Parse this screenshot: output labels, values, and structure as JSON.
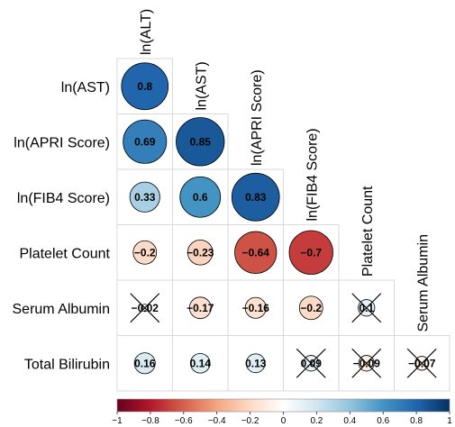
{
  "chart_data": {
    "type": "heatmap",
    "style": "correlation-circle-lower-triangle",
    "column_labels": [
      "ln(ALT)",
      "ln(AST)",
      "ln(APRI Score)",
      "ln(FIB4 Score)",
      "Platelet Count",
      "Serum Albumin"
    ],
    "row_labels": [
      "ln(AST)",
      "ln(APRI Score)",
      "ln(FIB4 Score)",
      "Platelet Count",
      "Serum Albumin",
      "Total Bilirubin"
    ],
    "cells": [
      {
        "row": 0,
        "col": 0,
        "value": 0.8,
        "label": "0.8",
        "crossed": false
      },
      {
        "row": 1,
        "col": 0,
        "value": 0.69,
        "label": "0.69",
        "crossed": false
      },
      {
        "row": 1,
        "col": 1,
        "value": 0.85,
        "label": "0.85",
        "crossed": false
      },
      {
        "row": 2,
        "col": 0,
        "value": 0.33,
        "label": "0.33",
        "crossed": false
      },
      {
        "row": 2,
        "col": 1,
        "value": 0.6,
        "label": "0.6",
        "crossed": false
      },
      {
        "row": 2,
        "col": 2,
        "value": 0.83,
        "label": "0.83",
        "crossed": false
      },
      {
        "row": 3,
        "col": 0,
        "value": -0.2,
        "label": "−0.2",
        "crossed": false
      },
      {
        "row": 3,
        "col": 1,
        "value": -0.23,
        "label": "−0.23",
        "crossed": false
      },
      {
        "row": 3,
        "col": 2,
        "value": -0.64,
        "label": "−0.64",
        "crossed": false
      },
      {
        "row": 3,
        "col": 3,
        "value": -0.7,
        "label": "−0.7",
        "crossed": false
      },
      {
        "row": 4,
        "col": 0,
        "value": -0.02,
        "label": "−0.02",
        "crossed": true
      },
      {
        "row": 4,
        "col": 1,
        "value": -0.17,
        "label": "−0.17",
        "crossed": false
      },
      {
        "row": 4,
        "col": 2,
        "value": -0.16,
        "label": "−0.16",
        "crossed": false
      },
      {
        "row": 4,
        "col": 3,
        "value": -0.2,
        "label": "−0.2",
        "crossed": false
      },
      {
        "row": 4,
        "col": 4,
        "value": 0.1,
        "label": "0.1",
        "crossed": true
      },
      {
        "row": 5,
        "col": 0,
        "value": 0.16,
        "label": "0.16",
        "crossed": false
      },
      {
        "row": 5,
        "col": 1,
        "value": 0.14,
        "label": "0.14",
        "crossed": false
      },
      {
        "row": 5,
        "col": 2,
        "value": 0.13,
        "label": "0.13",
        "crossed": false
      },
      {
        "row": 5,
        "col": 3,
        "value": 0.09,
        "label": "0.09",
        "crossed": true
      },
      {
        "row": 5,
        "col": 4,
        "value": -0.09,
        "label": "−0.09",
        "crossed": true
      },
      {
        "row": 5,
        "col": 5,
        "value": -0.07,
        "label": "−0.07",
        "crossed": true
      }
    ],
    "colorbar": {
      "range": [
        -1,
        1
      ],
      "ticks": [
        "−1",
        "−0.8",
        "−0.6",
        "−0.4",
        "−0.2",
        "0",
        "0.2",
        "0.4",
        "0.6",
        "0.8",
        "1"
      ],
      "colors": [
        "#67001f",
        "#b2182b",
        "#d6604d",
        "#f4a582",
        "#fddbc7",
        "#ffffff",
        "#d1e5f0",
        "#92c5de",
        "#4393c3",
        "#2166ac",
        "#053061"
      ]
    }
  }
}
